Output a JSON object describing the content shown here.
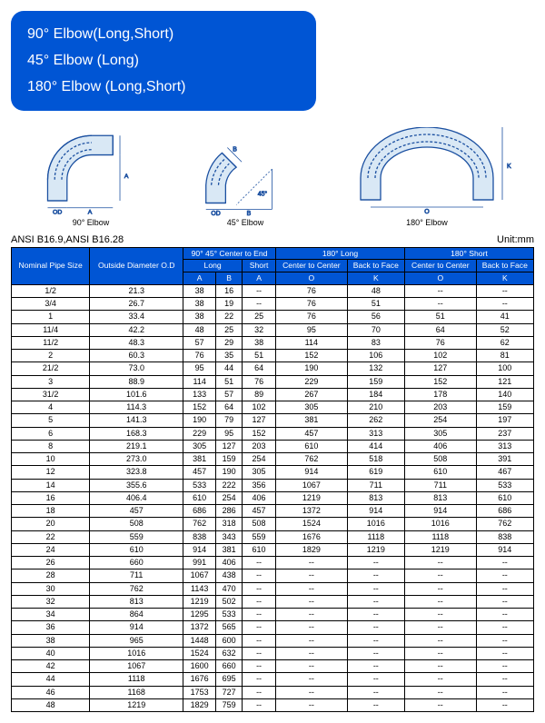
{
  "title_box": {
    "lines": [
      "90° Elbow(Long,Short)",
      "45° Elbow (Long)",
      "180° Elbow (Long,Short)"
    ]
  },
  "diagrams": {
    "items": [
      {
        "label": "90° Elbow"
      },
      {
        "label": "45° Elbow"
      },
      {
        "label": "180° Elbow"
      }
    ],
    "stroke": "#1a4fa0",
    "fill": "#d9e8f5"
  },
  "spec_bar": {
    "left": "ANSI B16.9,ANSI B16.28",
    "right": "Unit:mm"
  },
  "table": {
    "header": {
      "nominal": "Nominal Pipe Size",
      "od": "Outside Diameter O.D",
      "g9045": "90° 45° Center to End",
      "long": "Long",
      "short": "Short",
      "l180": "180° Long",
      "s180": "180° Short",
      "c2c": "Center to Center",
      "b2f": "Back to Face",
      "A": "A",
      "B": "B",
      "O": "O",
      "K": "K"
    },
    "colors": {
      "header_bg": "#0055d4",
      "header_fg": "#ffffff",
      "border": "#000000"
    },
    "rows": [
      [
        "1/2",
        "21.3",
        "38",
        "16",
        "--",
        "76",
        "48",
        "--",
        "--"
      ],
      [
        "3/4",
        "26.7",
        "38",
        "19",
        "--",
        "76",
        "51",
        "--",
        "--"
      ],
      [
        "1",
        "33.4",
        "38",
        "22",
        "25",
        "76",
        "56",
        "51",
        "41"
      ],
      [
        "11/4",
        "42.2",
        "48",
        "25",
        "32",
        "95",
        "70",
        "64",
        "52"
      ],
      [
        "11/2",
        "48.3",
        "57",
        "29",
        "38",
        "114",
        "83",
        "76",
        "62"
      ],
      [
        "2",
        "60.3",
        "76",
        "35",
        "51",
        "152",
        "106",
        "102",
        "81"
      ],
      [
        "21/2",
        "73.0",
        "95",
        "44",
        "64",
        "190",
        "132",
        "127",
        "100"
      ],
      [
        "3",
        "88.9",
        "114",
        "51",
        "76",
        "229",
        "159",
        "152",
        "121"
      ],
      [
        "31/2",
        "101.6",
        "133",
        "57",
        "89",
        "267",
        "184",
        "178",
        "140"
      ],
      [
        "4",
        "114.3",
        "152",
        "64",
        "102",
        "305",
        "210",
        "203",
        "159"
      ],
      [
        "5",
        "141.3",
        "190",
        "79",
        "127",
        "381",
        "262",
        "254",
        "197"
      ],
      [
        "6",
        "168.3",
        "229",
        "95",
        "152",
        "457",
        "313",
        "305",
        "237"
      ],
      [
        "8",
        "219.1",
        "305",
        "127",
        "203",
        "610",
        "414",
        "406",
        "313"
      ],
      [
        "10",
        "273.0",
        "381",
        "159",
        "254",
        "762",
        "518",
        "508",
        "391"
      ],
      [
        "12",
        "323.8",
        "457",
        "190",
        "305",
        "914",
        "619",
        "610",
        "467"
      ],
      [
        "14",
        "355.6",
        "533",
        "222",
        "356",
        "1067",
        "711",
        "711",
        "533"
      ],
      [
        "16",
        "406.4",
        "610",
        "254",
        "406",
        "1219",
        "813",
        "813",
        "610"
      ],
      [
        "18",
        "457",
        "686",
        "286",
        "457",
        "1372",
        "914",
        "914",
        "686"
      ],
      [
        "20",
        "508",
        "762",
        "318",
        "508",
        "1524",
        "1016",
        "1016",
        "762"
      ],
      [
        "22",
        "559",
        "838",
        "343",
        "559",
        "1676",
        "1118",
        "1118",
        "838"
      ],
      [
        "24",
        "610",
        "914",
        "381",
        "610",
        "1829",
        "1219",
        "1219",
        "914"
      ],
      [
        "26",
        "660",
        "991",
        "406",
        "--",
        "--",
        "--",
        "--",
        "--"
      ],
      [
        "28",
        "711",
        "1067",
        "438",
        "--",
        "--",
        "--",
        "--",
        "--"
      ],
      [
        "30",
        "762",
        "1143",
        "470",
        "--",
        "--",
        "--",
        "--",
        "--"
      ],
      [
        "32",
        "813",
        "1219",
        "502",
        "--",
        "--",
        "--",
        "--",
        "--"
      ],
      [
        "34",
        "864",
        "1295",
        "533",
        "--",
        "--",
        "--",
        "--",
        "--"
      ],
      [
        "36",
        "914",
        "1372",
        "565",
        "--",
        "--",
        "--",
        "--",
        "--"
      ],
      [
        "38",
        "965",
        "1448",
        "600",
        "--",
        "--",
        "--",
        "--",
        "--"
      ],
      [
        "40",
        "1016",
        "1524",
        "632",
        "--",
        "--",
        "--",
        "--",
        "--"
      ],
      [
        "42",
        "1067",
        "1600",
        "660",
        "--",
        "--",
        "--",
        "--",
        "--"
      ],
      [
        "44",
        "1118",
        "1676",
        "695",
        "--",
        "--",
        "--",
        "--",
        "--"
      ],
      [
        "46",
        "1168",
        "1753",
        "727",
        "--",
        "--",
        "--",
        "--",
        "--"
      ],
      [
        "48",
        "1219",
        "1829",
        "759",
        "--",
        "--",
        "--",
        "--",
        "--"
      ]
    ],
    "group_breaks_after": [
      9,
      14,
      19,
      20,
      24,
      29
    ]
  }
}
